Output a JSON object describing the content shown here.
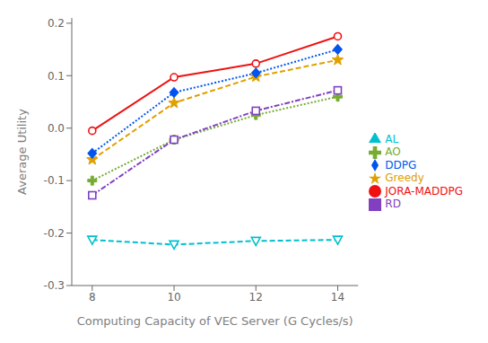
{
  "chart_data": {
    "type": "line",
    "xlabel": "Computing Capacity of VEC Server (G Cycles/s)",
    "ylabel": "Average Utility",
    "x": [
      8,
      10,
      12,
      14
    ],
    "series": [
      {
        "name": "JORA-MADDPG",
        "color": "#ee1111",
        "marker": "circle",
        "line_style": "solid",
        "values": [
          -0.005,
          0.097,
          0.123,
          0.175
        ]
      },
      {
        "name": "AL",
        "color": "#00c0d0",
        "marker": "triangle-down",
        "line_style": "dashed",
        "values": [
          -0.213,
          -0.222,
          -0.215,
          -0.213
        ]
      },
      {
        "name": "AO",
        "color": "#77ac30",
        "marker": "plus",
        "line_style": "dotted",
        "values": [
          -0.1,
          -0.022,
          0.025,
          0.06
        ]
      },
      {
        "name": "RD",
        "color": "#8040c0",
        "marker": "square",
        "line_style": "dashdot",
        "values": [
          -0.128,
          -0.022,
          0.033,
          0.072
        ]
      },
      {
        "name": "Greedy",
        "color": "#e0a000",
        "marker": "star",
        "line_style": "dashed",
        "values": [
          -0.06,
          0.048,
          0.098,
          0.13
        ]
      },
      {
        "name": "DDPG",
        "color": "#0055ee",
        "marker": "diamond",
        "line_style": "dotted",
        "values": [
          -0.048,
          0.068,
          0.105,
          0.15
        ]
      }
    ],
    "xlim": [
      7.5,
      14.5
    ],
    "ylim": [
      -0.3,
      0.21
    ],
    "xticks": [
      8,
      10,
      12,
      14
    ],
    "yticks": [
      -0.3,
      -0.2,
      -0.1,
      {
        "value": 0.0,
        "label": "0.0"
      },
      0.1,
      0.2
    ],
    "grid": false,
    "legend": "center right"
  }
}
